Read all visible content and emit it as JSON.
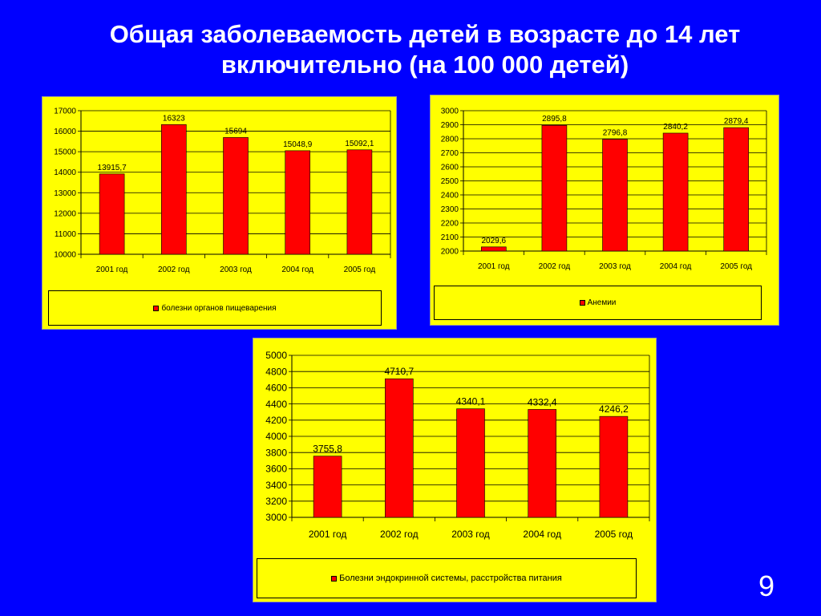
{
  "slide": {
    "title_line1": "Общая заболеваемость детей в возрасте до 14 лет",
    "title_line2": "включительно (на 100 000 детей)",
    "page_number": "9"
  },
  "colors": {
    "background": "#0000FF",
    "panel": "#FFFF00",
    "bar": "#FF0000"
  },
  "chart_data": [
    {
      "type": "bar",
      "categories": [
        "2001 год",
        "2002 год",
        "2003 год",
        "2004 год",
        "2005 год"
      ],
      "series": [
        {
          "name": "болезни органов пищеварения",
          "values": [
            13915.7,
            16323,
            15694,
            15048.9,
            15092.1
          ]
        }
      ],
      "value_labels": [
        "13915,7",
        "16323",
        "15694",
        "15048,9",
        "15092,1"
      ],
      "ylim": [
        10000,
        17000
      ],
      "ytick_step": 1000,
      "grid": true,
      "legend": "bottom"
    },
    {
      "type": "bar",
      "categories": [
        "2001 год",
        "2002 год",
        "2003 год",
        "2004 год",
        "2005 год"
      ],
      "series": [
        {
          "name": "Анемии",
          "values": [
            2029.6,
            2895.8,
            2796.8,
            2840.2,
            2879.4
          ]
        }
      ],
      "value_labels": [
        "2029,6",
        "2895,8",
        "2796,8",
        "2840,2",
        "2879,4"
      ],
      "ylim": [
        2000,
        3000
      ],
      "ytick_step": 100,
      "grid": true,
      "legend": "bottom"
    },
    {
      "type": "bar",
      "categories": [
        "2001 год",
        "2002 год",
        "2003 год",
        "2004 год",
        "2005 год"
      ],
      "series": [
        {
          "name": "Болезни эндокринной системы, расстройства питания",
          "values": [
            3755.8,
            4710.7,
            4340.1,
            4332.4,
            4246.2
          ]
        }
      ],
      "value_labels": [
        "3755,8",
        "4710,7",
        "4340,1",
        "4332,4",
        "4246,2"
      ],
      "ylim": [
        3000,
        5000
      ],
      "ytick_step": 200,
      "grid": true,
      "legend": "bottom"
    }
  ]
}
